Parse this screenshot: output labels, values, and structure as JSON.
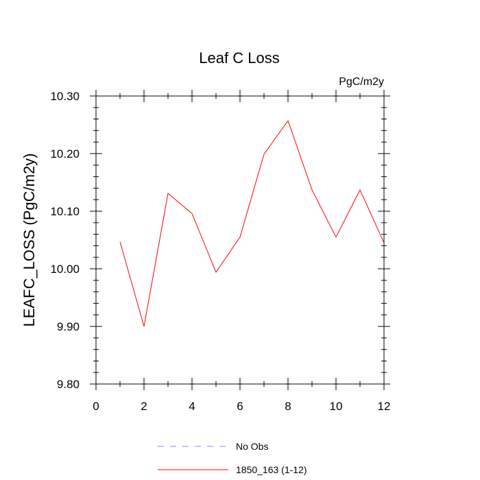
{
  "chart_data": {
    "type": "line",
    "title": "Leaf C Loss",
    "units_label": "PgC/m2y",
    "xlabel": "",
    "ylabel": "LEAFC_LOSS  (PgC/m2y)",
    "xlim": [
      0,
      12
    ],
    "ylim": [
      9.8,
      10.3
    ],
    "x_ticks": [
      0,
      2,
      4,
      6,
      8,
      10,
      12
    ],
    "x_tick_labels": [
      "0",
      "2",
      "4",
      "6",
      "8",
      "10",
      "12"
    ],
    "y_ticks": [
      9.8,
      9.9,
      10.0,
      10.1,
      10.2,
      10.3
    ],
    "y_tick_labels": [
      "9.80",
      "9.90",
      "10.00",
      "10.10",
      "10.20",
      "10.30"
    ],
    "grid": false,
    "series": [
      {
        "name": "1850_163 (1-12)",
        "color": "#ff0000",
        "dash": "solid",
        "x": [
          1,
          2,
          3,
          4,
          5,
          6,
          7,
          8,
          9,
          10,
          11,
          12
        ],
        "values": [
          10.047,
          9.9,
          10.131,
          10.096,
          9.994,
          10.055,
          10.199,
          10.257,
          10.137,
          10.055,
          10.137,
          10.045
        ]
      }
    ],
    "legend": [
      {
        "label": "No Obs",
        "color": "#8080ff",
        "dash": "dashed"
      },
      {
        "label": "1850_163 (1-12)",
        "color": "#ff0000",
        "dash": "solid"
      }
    ]
  }
}
